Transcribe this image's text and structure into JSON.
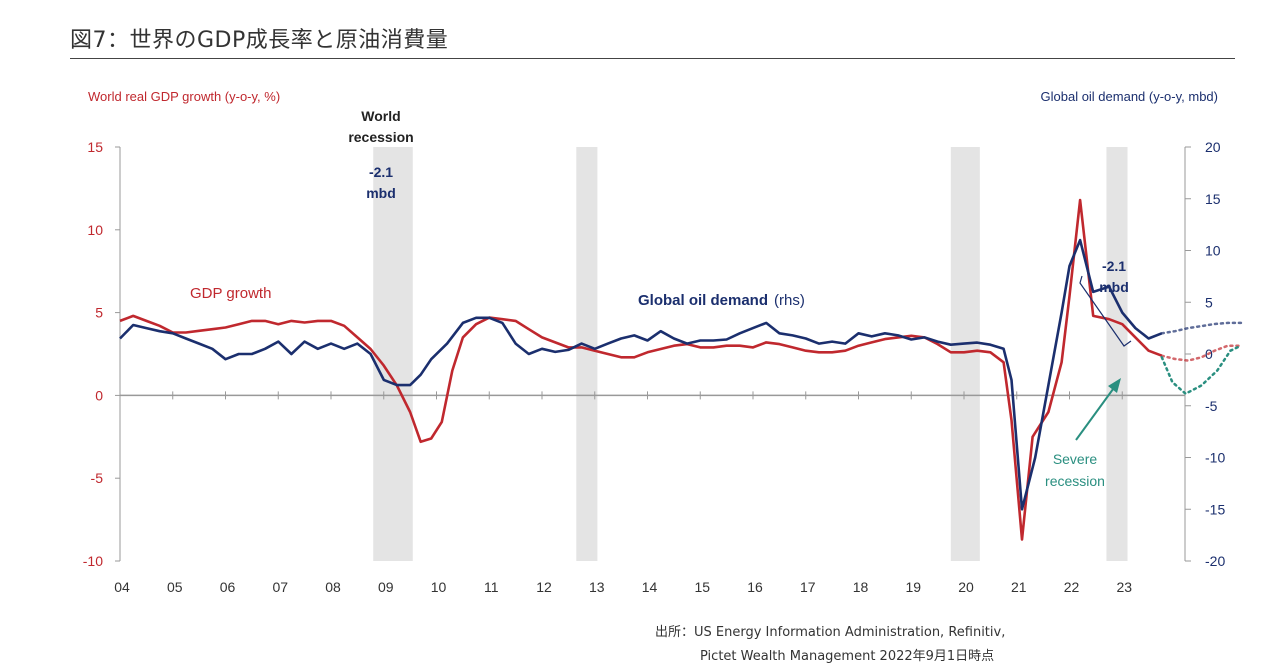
{
  "figure": {
    "title": "図7：世界のGDP成長率と原油消費量",
    "source_line1": "出所：US Energy Information Administration, Refinitiv,",
    "source_line2": "Pictet Wealth Management  2022年9月1日時点"
  },
  "colors": {
    "gdp": "#c0282e",
    "oil": "#1b2f6e",
    "recession_shade": "#e4e4e4",
    "arrow": "#2a8f80",
    "axis": "#999999",
    "zero_line": "#999999"
  },
  "chart_data": {
    "type": "line",
    "left_axis": {
      "label": "World real GDP growth (y-o-y, %)",
      "ylim": [
        -10,
        15
      ],
      "ticks": [
        "15",
        "10",
        "5",
        "0",
        "-5",
        "-10"
      ]
    },
    "right_axis": {
      "label": "Global oil demand (y-o-y, mbd)",
      "ylim": [
        -20,
        20
      ],
      "ticks": [
        "20",
        "15",
        "10",
        "5",
        "0",
        "-5",
        "-10",
        "-15",
        "-20"
      ]
    },
    "x_ticks": [
      "04",
      "05",
      "06",
      "07",
      "08",
      "09",
      "10",
      "11",
      "12",
      "13",
      "14",
      "15",
      "16",
      "17",
      "18",
      "19",
      "20",
      "21",
      "22",
      "23"
    ],
    "shaded_periods": [
      [
        2008.8,
        2009.55
      ],
      [
        2012.65,
        2013.05
      ],
      [
        2019.75,
        2020.3
      ],
      [
        2022.7,
        2023.1
      ]
    ],
    "series": [
      {
        "name": "GDP growth",
        "axis": "left",
        "color": "#c0282e",
        "points": [
          [
            2004.0,
            4.5
          ],
          [
            2004.25,
            4.8
          ],
          [
            2004.5,
            4.5
          ],
          [
            2004.75,
            4.2
          ],
          [
            2005.0,
            3.8
          ],
          [
            2005.25,
            3.8
          ],
          [
            2005.5,
            3.9
          ],
          [
            2005.75,
            4.0
          ],
          [
            2006.0,
            4.1
          ],
          [
            2006.25,
            4.3
          ],
          [
            2006.5,
            4.5
          ],
          [
            2006.75,
            4.5
          ],
          [
            2007.0,
            4.3
          ],
          [
            2007.25,
            4.5
          ],
          [
            2007.5,
            4.4
          ],
          [
            2007.75,
            4.5
          ],
          [
            2008.0,
            4.5
          ],
          [
            2008.25,
            4.2
          ],
          [
            2008.5,
            3.5
          ],
          [
            2008.75,
            2.8
          ],
          [
            2009.0,
            1.8
          ],
          [
            2009.25,
            0.6
          ],
          [
            2009.5,
            -1.0
          ],
          [
            2009.7,
            -2.8
          ],
          [
            2009.9,
            -2.6
          ],
          [
            2010.1,
            -1.6
          ],
          [
            2010.3,
            1.5
          ],
          [
            2010.5,
            3.5
          ],
          [
            2010.75,
            4.3
          ],
          [
            2011.0,
            4.7
          ],
          [
            2011.25,
            4.6
          ],
          [
            2011.5,
            4.5
          ],
          [
            2011.75,
            4.0
          ],
          [
            2012.0,
            3.5
          ],
          [
            2012.25,
            3.2
          ],
          [
            2012.5,
            2.9
          ],
          [
            2012.75,
            2.9
          ],
          [
            2013.0,
            2.7
          ],
          [
            2013.25,
            2.5
          ],
          [
            2013.5,
            2.3
          ],
          [
            2013.75,
            2.3
          ],
          [
            2014.0,
            2.6
          ],
          [
            2014.25,
            2.8
          ],
          [
            2014.5,
            3.0
          ],
          [
            2014.75,
            3.1
          ],
          [
            2015.0,
            2.9
          ],
          [
            2015.25,
            2.9
          ],
          [
            2015.5,
            3.0
          ],
          [
            2015.75,
            3.0
          ],
          [
            2016.0,
            2.9
          ],
          [
            2016.25,
            3.2
          ],
          [
            2016.5,
            3.1
          ],
          [
            2016.75,
            2.9
          ],
          [
            2017.0,
            2.7
          ],
          [
            2017.25,
            2.6
          ],
          [
            2017.5,
            2.6
          ],
          [
            2017.75,
            2.7
          ],
          [
            2018.0,
            3.0
          ],
          [
            2018.25,
            3.2
          ],
          [
            2018.5,
            3.4
          ],
          [
            2018.75,
            3.5
          ],
          [
            2019.0,
            3.6
          ],
          [
            2019.25,
            3.5
          ],
          [
            2019.5,
            3.1
          ],
          [
            2019.75,
            2.6
          ],
          [
            2020.0,
            2.6
          ],
          [
            2020.25,
            2.7
          ],
          [
            2020.5,
            2.6
          ],
          [
            2020.75,
            2.0
          ],
          [
            2020.9,
            -1.5
          ],
          [
            2021.1,
            -8.7
          ],
          [
            2021.3,
            -2.5
          ],
          [
            2021.6,
            -1.0
          ],
          [
            2021.85,
            2.0
          ],
          [
            2022.0,
            6.0
          ],
          [
            2022.2,
            11.8
          ],
          [
            2022.45,
            4.8
          ],
          [
            2022.75,
            4.6
          ],
          [
            2023.0,
            4.3
          ],
          [
            2023.25,
            3.5
          ],
          [
            2023.5,
            2.7
          ],
          [
            2023.75,
            2.4
          ]
        ],
        "projection": [
          [
            2023.75,
            2.4
          ],
          [
            2024.0,
            2.2
          ],
          [
            2024.25,
            2.1
          ],
          [
            2024.5,
            2.3
          ],
          [
            2024.75,
            2.7
          ],
          [
            2025.0,
            3.0
          ],
          [
            2025.25,
            3.0
          ]
        ]
      },
      {
        "name": "Global oil demand",
        "axis": "right",
        "color": "#1b2f6e",
        "points": [
          [
            2004.0,
            1.5
          ],
          [
            2004.25,
            2.8
          ],
          [
            2004.5,
            2.5
          ],
          [
            2004.75,
            2.2
          ],
          [
            2005.0,
            2.0
          ],
          [
            2005.25,
            1.5
          ],
          [
            2005.5,
            1.0
          ],
          [
            2005.75,
            0.5
          ],
          [
            2006.0,
            -0.5
          ],
          [
            2006.25,
            0.0
          ],
          [
            2006.5,
            0.0
          ],
          [
            2006.75,
            0.5
          ],
          [
            2007.0,
            1.2
          ],
          [
            2007.25,
            0.0
          ],
          [
            2007.5,
            1.2
          ],
          [
            2007.75,
            0.5
          ],
          [
            2008.0,
            1.0
          ],
          [
            2008.25,
            0.5
          ],
          [
            2008.5,
            1.0
          ],
          [
            2008.75,
            0.0
          ],
          [
            2009.0,
            -2.5
          ],
          [
            2009.25,
            -3.0
          ],
          [
            2009.5,
            -3.0
          ],
          [
            2009.7,
            -2.0
          ],
          [
            2009.9,
            -0.5
          ],
          [
            2010.2,
            1.0
          ],
          [
            2010.5,
            3.0
          ],
          [
            2010.75,
            3.5
          ],
          [
            2011.0,
            3.5
          ],
          [
            2011.25,
            3.0
          ],
          [
            2011.5,
            1.0
          ],
          [
            2011.75,
            0.0
          ],
          [
            2012.0,
            0.5
          ],
          [
            2012.25,
            0.2
          ],
          [
            2012.5,
            0.4
          ],
          [
            2012.75,
            1.0
          ],
          [
            2013.0,
            0.5
          ],
          [
            2013.25,
            1.0
          ],
          [
            2013.5,
            1.5
          ],
          [
            2013.75,
            1.8
          ],
          [
            2014.0,
            1.3
          ],
          [
            2014.25,
            2.2
          ],
          [
            2014.5,
            1.5
          ],
          [
            2014.75,
            1.0
          ],
          [
            2015.0,
            1.3
          ],
          [
            2015.25,
            1.3
          ],
          [
            2015.5,
            1.4
          ],
          [
            2015.75,
            2.0
          ],
          [
            2016.0,
            2.5
          ],
          [
            2016.25,
            3.0
          ],
          [
            2016.5,
            2.0
          ],
          [
            2016.75,
            1.8
          ],
          [
            2017.0,
            1.5
          ],
          [
            2017.25,
            1.0
          ],
          [
            2017.5,
            1.2
          ],
          [
            2017.75,
            1.0
          ],
          [
            2018.0,
            2.0
          ],
          [
            2018.25,
            1.7
          ],
          [
            2018.5,
            2.0
          ],
          [
            2018.75,
            1.8
          ],
          [
            2019.0,
            1.4
          ],
          [
            2019.25,
            1.6
          ],
          [
            2019.5,
            1.2
          ],
          [
            2019.75,
            0.9
          ],
          [
            2020.0,
            1.0
          ],
          [
            2020.25,
            1.1
          ],
          [
            2020.5,
            0.9
          ],
          [
            2020.75,
            0.5
          ],
          [
            2020.9,
            -2.5
          ],
          [
            2021.1,
            -15.0
          ],
          [
            2021.35,
            -10.0
          ],
          [
            2021.6,
            -3.0
          ],
          [
            2021.85,
            4.0
          ],
          [
            2022.0,
            8.5
          ],
          [
            2022.2,
            11.0
          ],
          [
            2022.45,
            6.0
          ],
          [
            2022.75,
            6.5
          ],
          [
            2023.0,
            4.0
          ],
          [
            2023.25,
            2.5
          ],
          [
            2023.5,
            1.5
          ],
          [
            2023.75,
            2.0
          ]
        ],
        "projection": [
          [
            2023.75,
            2.0
          ],
          [
            2024.0,
            2.2
          ],
          [
            2024.25,
            2.5
          ],
          [
            2024.5,
            2.7
          ],
          [
            2024.75,
            2.9
          ],
          [
            2025.0,
            3.0
          ],
          [
            2025.25,
            3.0
          ]
        ]
      }
    ],
    "annotations": {
      "world_recession_line1": "World",
      "world_recession_line2": "recession",
      "gfc_drop_line1": "-2.1",
      "gfc_drop_line2": "mbd",
      "recent_drop_line1": "-2.1",
      "recent_drop_line2": "mbd",
      "gdp_label": "GDP growth",
      "oil_label_bold": "Global oil demand",
      "oil_label_suffix": "(rhs)",
      "severe_line1": "Severe",
      "severe_line2": "recession"
    }
  }
}
